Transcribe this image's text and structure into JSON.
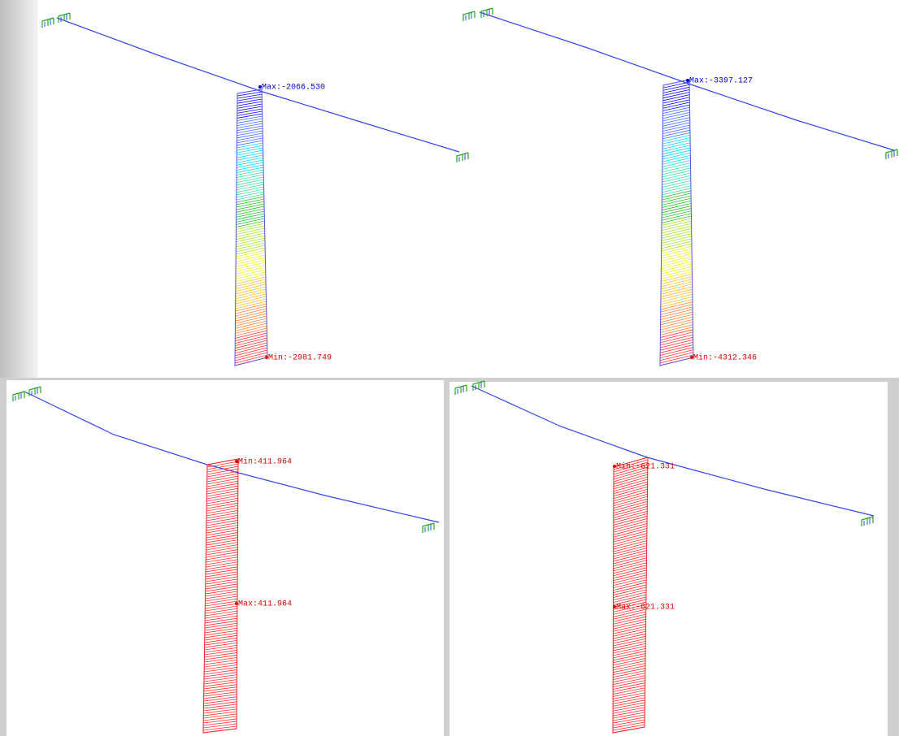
{
  "panels": [
    {
      "labels": [
        "Max:-2066.530",
        "Min:-2981.749"
      ]
    },
    {
      "labels": [
        "Max:-3397.127",
        "Min:-4312.346"
      ]
    },
    {
      "labels": [
        "Min:411.964",
        "Max:411.964"
      ]
    },
    {
      "labels": [
        "Min:-621.331",
        "Max:-621.331"
      ]
    }
  ]
}
